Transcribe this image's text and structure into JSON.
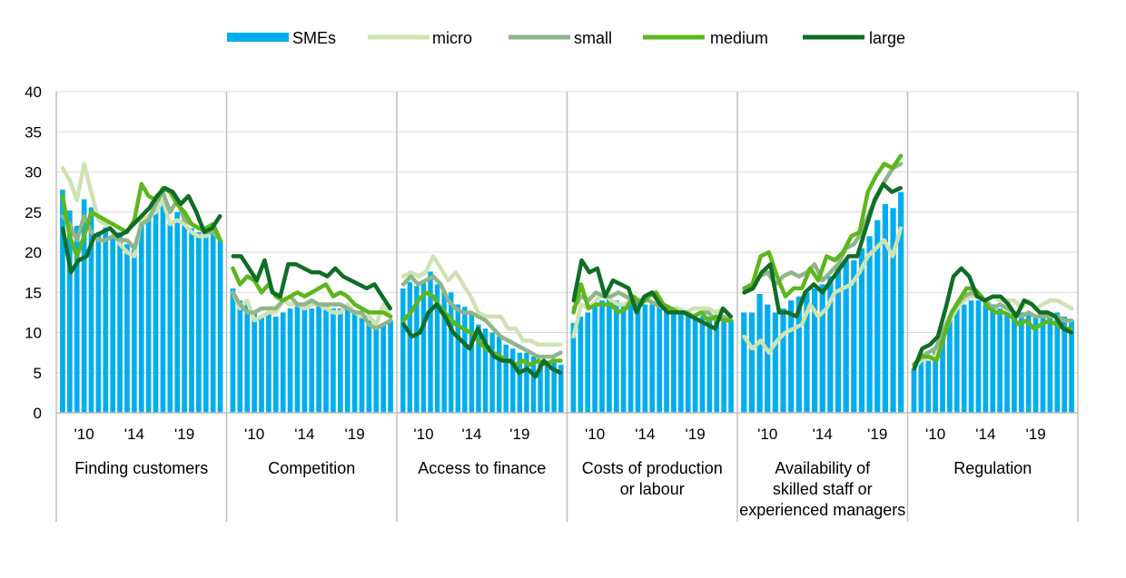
{
  "chart_data": {
    "type": "bar+line",
    "title": "",
    "xlabel": "",
    "ylabel": "",
    "ylim": [
      0,
      40
    ],
    "yticks": [
      "0",
      "5",
      "10",
      "15",
      "20",
      "25",
      "30",
      "35",
      "40"
    ],
    "grid": "horizontal",
    "legend_position": "top-center",
    "legend": [
      {
        "name": "SMEs",
        "color": "#00AEEF",
        "kind": "bar"
      },
      {
        "name": "micro",
        "color": "#CFE3B2",
        "kind": "line"
      },
      {
        "name": "small",
        "color": "#8FB58A",
        "kind": "line"
      },
      {
        "name": "medium",
        "color": "#5DB61D",
        "kind": "line"
      },
      {
        "name": "large",
        "color": "#0F6E26",
        "kind": "line"
      }
    ],
    "x_tick_labels": [
      "'10",
      "'14",
      "'19"
    ],
    "x_tick_positions": [
      3,
      10,
      17
    ],
    "panels": [
      {
        "label": "Finding customers",
        "SMEs": [
          27.8,
          25.2,
          23.3,
          26.6,
          25.6,
          22.5,
          23.1,
          22.0,
          22.5,
          21.0,
          20.3,
          24.0,
          24.5,
          25.5,
          26.5,
          23.5,
          25.0,
          24.0,
          23.0,
          22.5,
          22.3,
          22.5,
          21.5
        ],
        "micro": [
          30.5,
          29.0,
          26.5,
          31.0,
          27.5,
          24.0,
          23.5,
          22.5,
          21.0,
          20.0,
          19.5,
          24.0,
          24.5,
          25.0,
          26.5,
          23.5,
          24.0,
          23.5,
          22.5,
          22.0,
          22.0,
          23.0,
          21.5
        ],
        "small": [
          24.5,
          23.5,
          21.5,
          24.5,
          22.5,
          21.5,
          21.5,
          22.0,
          21.5,
          21.5,
          20.5,
          23.5,
          24.0,
          26.0,
          27.5,
          25.0,
          26.5,
          24.0,
          23.5,
          23.0,
          22.5,
          22.5,
          21.5
        ],
        "medium": [
          27.0,
          22.0,
          19.5,
          22.0,
          25.0,
          24.5,
          24.0,
          23.5,
          23.0,
          22.5,
          24.0,
          28.5,
          27.0,
          26.5,
          28.0,
          27.5,
          26.0,
          25.0,
          23.5,
          23.0,
          23.0,
          23.5,
          21.5
        ],
        "large": [
          23.0,
          17.5,
          19.0,
          19.5,
          22.0,
          22.5,
          23.0,
          22.0,
          22.5,
          23.5,
          24.5,
          25.5,
          27.0,
          28.0,
          27.5,
          26.0,
          27.0,
          25.0,
          22.5,
          23.0,
          24.5
        ]
      },
      {
        "label": "Competition",
        "SMEs": [
          15.5,
          14.0,
          13.5,
          12.5,
          12.0,
          12.5,
          12.0,
          12.5,
          13.0,
          13.5,
          13.5,
          13.0,
          13.5,
          13.5,
          13.0,
          13.0,
          13.5,
          12.5,
          12.5,
          11.5,
          11.0,
          11.0,
          11.5
        ],
        "micro": [
          15.0,
          13.0,
          14.0,
          11.5,
          12.0,
          12.5,
          12.5,
          14.0,
          13.5,
          13.5,
          13.0,
          13.5,
          13.5,
          13.0,
          12.5,
          12.5,
          13.5,
          12.5,
          12.0,
          12.0,
          11.0,
          13.5,
          12.0
        ],
        "small": [
          15.0,
          13.5,
          12.5,
          12.5,
          13.0,
          13.0,
          13.0,
          14.0,
          14.5,
          13.5,
          13.5,
          14.0,
          13.5,
          13.5,
          13.5,
          13.5,
          13.0,
          12.5,
          12.5,
          11.0,
          10.5,
          11.0,
          11.5
        ],
        "medium": [
          18.0,
          16.0,
          17.0,
          16.5,
          15.0,
          16.0,
          14.5,
          14.0,
          14.5,
          15.0,
          14.5,
          15.0,
          15.5,
          16.0,
          14.5,
          15.0,
          14.5,
          13.5,
          13.0,
          12.5,
          12.5,
          12.5,
          12.0
        ],
        "large": [
          19.5,
          19.5,
          18.0,
          16.5,
          19.0,
          15.0,
          14.5,
          18.5,
          18.5,
          18.0,
          17.5,
          17.5,
          17.0,
          18.0,
          17.0,
          16.5,
          16.0,
          15.5,
          16.0,
          14.5,
          13.0
        ]
      },
      {
        "label": "Access to finance",
        "SMEs": [
          15.5,
          16.3,
          15.8,
          16.5,
          17.6,
          16.0,
          15.0,
          15.0,
          13.5,
          13.2,
          12.5,
          11.0,
          10.5,
          10.0,
          9.5,
          8.5,
          8.0,
          7.5,
          7.5,
          7.0,
          6.5,
          6.5,
          6.5,
          6.0
        ],
        "micro": [
          17.0,
          17.5,
          17.0,
          17.5,
          19.5,
          18.0,
          16.5,
          17.5,
          16.0,
          14.5,
          12.5,
          12.0,
          12.0,
          12.0,
          10.5,
          10.5,
          9.0,
          9.0,
          8.5,
          8.5,
          8.5,
          8.5
        ],
        "small": [
          16.0,
          17.0,
          16.0,
          16.5,
          17.0,
          16.0,
          14.0,
          13.0,
          12.5,
          12.5,
          12.0,
          11.5,
          10.5,
          9.5,
          9.0,
          8.5,
          8.0,
          7.5,
          7.0,
          7.0,
          7.0,
          7.5
        ],
        "medium": [
          11.5,
          12.5,
          14.0,
          15.0,
          14.5,
          13.0,
          12.0,
          11.0,
          10.5,
          10.0,
          9.0,
          8.0,
          7.5,
          7.0,
          6.5,
          6.0,
          6.5,
          6.0,
          6.5,
          6.0,
          6.5,
          6.5
        ],
        "large": [
          11.0,
          9.5,
          10.0,
          12.5,
          13.5,
          12.0,
          10.0,
          9.0,
          8.0,
          10.5,
          8.5,
          7.0,
          6.5,
          6.5,
          5.0,
          5.5,
          4.5,
          6.5,
          5.5,
          5.0
        ]
      },
      {
        "label": "Costs of production or labour",
        "SMEs": [
          11.2,
          12.0,
          12.5,
          13.5,
          14.0,
          14.5,
          14.0,
          13.5,
          14.5,
          14.0,
          13.5,
          13.5,
          13.5,
          13.0,
          13.0,
          12.5,
          12.5,
          12.0,
          12.0,
          12.0,
          11.5,
          12.0,
          11.5
        ],
        "micro": [
          9.5,
          13.5,
          13.0,
          14.0,
          15.0,
          14.0,
          13.5,
          13.5,
          14.5,
          14.0,
          14.0,
          13.5,
          13.0,
          13.0,
          13.0,
          12.5,
          13.0,
          13.0,
          13.0,
          12.5,
          13.0,
          12.0
        ],
        "small": [
          13.0,
          14.5,
          14.0,
          15.0,
          14.5,
          14.5,
          15.0,
          14.5,
          14.0,
          14.0,
          14.0,
          13.5,
          13.0,
          13.0,
          12.5,
          12.5,
          12.0,
          12.5,
          12.5,
          11.5,
          12.0,
          11.5
        ],
        "medium": [
          12.5,
          16.0,
          13.0,
          13.5,
          13.5,
          13.5,
          12.5,
          13.0,
          14.5,
          13.5,
          14.5,
          15.0,
          13.5,
          13.0,
          12.5,
          12.5,
          12.0,
          12.5,
          11.5,
          12.0,
          11.5,
          11.5
        ],
        "large": [
          14.0,
          19.0,
          17.5,
          18.0,
          14.5,
          16.5,
          16.0,
          15.5,
          12.5,
          14.5,
          15.0,
          13.5,
          12.5,
          12.5,
          12.5,
          12.0,
          11.5,
          11.0,
          10.5,
          13.0,
          12.0
        ]
      },
      {
        "label": "Availability of skilled staff or experienced managers",
        "SMEs": [
          12.5,
          12.5,
          14.8,
          13.5,
          12.5,
          13.0,
          14.0,
          14.5,
          15.0,
          15.5,
          16.0,
          17.0,
          18.0,
          19.0,
          19.0,
          20.5,
          22.0,
          24.0,
          26.0,
          25.5,
          27.5
        ],
        "micro": [
          9.5,
          8.0,
          9.0,
          7.5,
          9.0,
          10.0,
          10.5,
          11.0,
          13.5,
          12.0,
          13.0,
          15.0,
          15.5,
          16.0,
          17.5,
          19.5,
          20.5,
          21.5,
          19.5,
          23.0
        ],
        "small": [
          15.0,
          15.5,
          17.0,
          17.5,
          16.0,
          17.0,
          17.5,
          17.0,
          17.5,
          18.5,
          16.5,
          17.5,
          18.5,
          20.5,
          21.0,
          22.5,
          25.0,
          27.0,
          29.0,
          30.5,
          31.0
        ],
        "medium": [
          15.5,
          16.0,
          19.5,
          20.0,
          17.0,
          14.5,
          15.5,
          15.5,
          18.0,
          16.5,
          19.5,
          19.0,
          20.0,
          22.0,
          22.5,
          27.5,
          29.5,
          31.0,
          30.5,
          32.0
        ],
        "large": [
          15.0,
          15.5,
          17.5,
          18.5,
          12.5,
          12.5,
          12.0,
          15.0,
          16.0,
          15.0,
          16.5,
          18.0,
          19.5,
          19.5,
          23.0,
          26.5,
          28.5,
          27.5,
          28.0
        ]
      },
      {
        "label": "Regulation",
        "SMEs": [
          5.5,
          6.5,
          6.5,
          8.0,
          10.0,
          12.0,
          13.0,
          13.5,
          14.0,
          14.0,
          13.5,
          13.5,
          13.0,
          12.5,
          12.5,
          12.5,
          12.5,
          12.0,
          12.5,
          12.5,
          12.5,
          12.0,
          11.5
        ],
        "micro": [
          5.5,
          6.5,
          7.0,
          7.0,
          9.5,
          11.5,
          13.0,
          14.0,
          14.5,
          14.5,
          14.0,
          14.5,
          14.0,
          14.0,
          14.0,
          13.0,
          14.0,
          13.0,
          13.5,
          14.0,
          14.0,
          13.5,
          13.0
        ],
        "small": [
          6.0,
          7.0,
          7.5,
          8.0,
          10.0,
          12.0,
          13.5,
          14.5,
          15.0,
          14.5,
          14.0,
          13.0,
          13.5,
          13.0,
          12.5,
          12.0,
          12.5,
          12.0,
          12.0,
          12.0,
          12.0,
          11.5,
          11.5
        ],
        "medium": [
          6.0,
          7.0,
          7.0,
          6.5,
          9.5,
          12.5,
          14.0,
          15.5,
          15.5,
          14.5,
          13.0,
          12.5,
          12.5,
          12.0,
          11.0,
          11.5,
          10.5,
          11.0,
          11.5,
          11.0,
          10.5,
          10.5
        ],
        "large": [
          5.5,
          8.0,
          8.5,
          9.5,
          13.0,
          17.0,
          18.0,
          17.0,
          14.5,
          14.0,
          14.5,
          14.5,
          13.5,
          12.0,
          14.0,
          13.5,
          12.5,
          12.5,
          12.0,
          10.5,
          10.0
        ]
      }
    ]
  }
}
